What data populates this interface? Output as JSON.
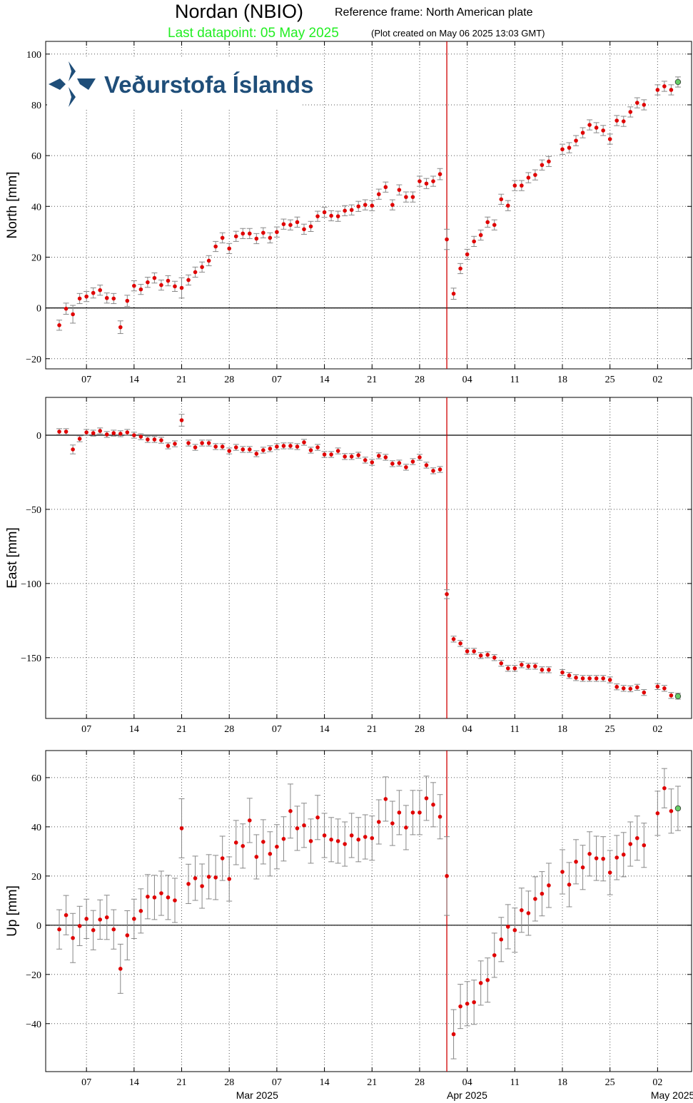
{
  "header": {
    "title": "Nordan (NBIO)",
    "reference": "Reference frame: North American plate",
    "last_datapoint": "Last datapoint: 05 May 2025",
    "created": "(Plot created on May 06 2025 13:03 GMT)"
  },
  "logo": {
    "text": "Veðurstofa Íslands"
  },
  "chart_data": {
    "type": "scatter",
    "color": "#e00000",
    "last_color": "#66cc66",
    "grid": true,
    "zero_line": true,
    "event_lines": [
      {
        "x": "2025-04-01",
        "color": "#d00000"
      }
    ],
    "xlim": [
      "2025-02-01",
      "2025-05-07"
    ],
    "xticks": [
      {
        "value": "2025-02-07",
        "label": "07"
      },
      {
        "value": "2025-02-14",
        "label": "14"
      },
      {
        "value": "2025-02-21",
        "label": "21"
      },
      {
        "value": "2025-02-28",
        "label": "28"
      },
      {
        "value": "2025-03-07",
        "label": "07"
      },
      {
        "value": "2025-03-14",
        "label": "14"
      },
      {
        "value": "2025-03-21",
        "label": "21"
      },
      {
        "value": "2025-03-28",
        "label": "28"
      },
      {
        "value": "2025-04-04",
        "label": "04"
      },
      {
        "value": "2025-04-11",
        "label": "11"
      },
      {
        "value": "2025-04-18",
        "label": "18"
      },
      {
        "value": "2025-04-25",
        "label": "25"
      },
      {
        "value": "2025-05-02",
        "label": "02"
      }
    ],
    "month_labels": [
      {
        "value": "2025-03-01",
        "label": "Mar 2025"
      },
      {
        "value": "2025-04-01",
        "label": "Apr 2025"
      },
      {
        "value": "2025-05-01",
        "label": "May 2025"
      }
    ],
    "x": [
      "2025-02-03",
      "2025-02-04",
      "2025-02-05",
      "2025-02-06",
      "2025-02-07",
      "2025-02-08",
      "2025-02-09",
      "2025-02-10",
      "2025-02-11",
      "2025-02-12",
      "2025-02-13",
      "2025-02-14",
      "2025-02-15",
      "2025-02-16",
      "2025-02-17",
      "2025-02-18",
      "2025-02-19",
      "2025-02-20",
      "2025-02-21",
      "2025-02-22",
      "2025-02-23",
      "2025-02-24",
      "2025-02-25",
      "2025-02-26",
      "2025-02-27",
      "2025-02-28",
      "2025-03-01",
      "2025-03-02",
      "2025-03-03",
      "2025-03-04",
      "2025-03-05",
      "2025-03-06",
      "2025-03-07",
      "2025-03-08",
      "2025-03-09",
      "2025-03-10",
      "2025-03-11",
      "2025-03-12",
      "2025-03-13",
      "2025-03-14",
      "2025-03-15",
      "2025-03-16",
      "2025-03-17",
      "2025-03-18",
      "2025-03-19",
      "2025-03-20",
      "2025-03-21",
      "2025-03-22",
      "2025-03-23",
      "2025-03-24",
      "2025-03-25",
      "2025-03-26",
      "2025-03-27",
      "2025-03-28",
      "2025-03-29",
      "2025-03-30",
      "2025-03-31",
      "2025-04-01",
      "2025-04-02",
      "2025-04-03",
      "2025-04-04",
      "2025-04-05",
      "2025-04-06",
      "2025-04-07",
      "2025-04-08",
      "2025-04-09",
      "2025-04-10",
      "2025-04-11",
      "2025-04-12",
      "2025-04-13",
      "2025-04-14",
      "2025-04-15",
      "2025-04-16",
      "2025-04-18",
      "2025-04-19",
      "2025-04-20",
      "2025-04-21",
      "2025-04-22",
      "2025-04-23",
      "2025-04-24",
      "2025-04-25",
      "2025-04-26",
      "2025-04-27",
      "2025-04-28",
      "2025-04-29",
      "2025-04-30",
      "2025-05-02",
      "2025-05-03",
      "2025-05-04",
      "2025-05-05"
    ],
    "panels": [
      {
        "ylabel": "North [mm]",
        "ylim": [
          -24,
          105
        ],
        "yticks": [
          {
            "value": -20,
            "label": "−20"
          },
          0,
          20,
          40,
          60,
          80,
          100
        ],
        "values": [
          -6.8,
          -0.3,
          -2.5,
          3.7,
          4.5,
          5.9,
          7.0,
          3.9,
          3.7,
          -7.6,
          2.8,
          8.7,
          7.3,
          10.1,
          11.8,
          9.0,
          10.7,
          8.5,
          7.9,
          11.0,
          14.1,
          16.1,
          18.6,
          24.2,
          27.6,
          23.4,
          28.2,
          29.3,
          29.3,
          27.3,
          29.6,
          27.6,
          29.9,
          33.0,
          32.7,
          33.8,
          31.0,
          32.1,
          36.1,
          37.7,
          36.3,
          36.1,
          38.3,
          38.6,
          40.0,
          40.6,
          40.3,
          44.8,
          47.6,
          40.6,
          46.5,
          43.7,
          43.7,
          49.9,
          49.0,
          49.9,
          52.7,
          27.0,
          5.6,
          15.5,
          21.1,
          26.2,
          28.7,
          33.8,
          32.7,
          42.8,
          40.3,
          48.2,
          48.2,
          51.3,
          52.4,
          56.3,
          57.7,
          62.5,
          63.1,
          65.9,
          69.0,
          72.1,
          71.0,
          69.9,
          66.5,
          73.8,
          73.5,
          77.2,
          80.8,
          80.0,
          85.9,
          87.3,
          85.9,
          89.0
        ],
        "errors": [
          2,
          2.2,
          3.5,
          2,
          2,
          2,
          2,
          2,
          2,
          2.5,
          2.2,
          2,
          2,
          2,
          2,
          2,
          2,
          2,
          4,
          2,
          2,
          2,
          2,
          2,
          2,
          2,
          2,
          2,
          2,
          2,
          2,
          2,
          2,
          2,
          2,
          2,
          2,
          2,
          2,
          2,
          2,
          2,
          2,
          2,
          2,
          2,
          2,
          2,
          2,
          2,
          2,
          2,
          2,
          2,
          2,
          2,
          2.2,
          4,
          2.2,
          2,
          2,
          2,
          2,
          2,
          2,
          2,
          2,
          2,
          2,
          2,
          2,
          2,
          2,
          2,
          2,
          2,
          2,
          2,
          2,
          2,
          2,
          2,
          2,
          2,
          2,
          2,
          2,
          2,
          2,
          2
        ]
      },
      {
        "ylabel": "East [mm]",
        "ylim": [
          -191,
          25.5
        ],
        "yticks": [
          {
            "value": -150,
            "label": "−150"
          },
          {
            "value": -100,
            "label": "−100"
          },
          {
            "value": -50,
            "label": "−50"
          },
          0
        ],
        "values": [
          2.4,
          2.4,
          -9.6,
          -2.4,
          1.9,
          1.4,
          2.9,
          0.5,
          1.4,
          1.0,
          1.9,
          0,
          -1,
          -2.9,
          -2.9,
          -3.4,
          -7.2,
          -5.8,
          10.1,
          -5.3,
          -8.2,
          -5.3,
          -5.3,
          -7.7,
          -7.7,
          -10.6,
          -8.2,
          -9.6,
          -9.6,
          -12.5,
          -10.1,
          -9.1,
          -7.7,
          -7.2,
          -7.2,
          -7.7,
          -4.8,
          -10.1,
          -8.2,
          -13,
          -13,
          -10.6,
          -14.4,
          -14.4,
          -13.5,
          -16.8,
          -18.3,
          -13.9,
          -14.9,
          -19.2,
          -18.8,
          -21.6,
          -17.8,
          -14.9,
          -20.2,
          -24,
          -23.1,
          -107.2,
          -137.5,
          -140.4,
          -145.7,
          -145.7,
          -148.6,
          -148.1,
          -150,
          -153.8,
          -157.2,
          -157.2,
          -154.8,
          -155.8,
          -155.8,
          -158.2,
          -158.2,
          -160,
          -162,
          -163.5,
          -164,
          -164,
          -164,
          -164,
          -165,
          -169.7,
          -170.7,
          -171,
          -170,
          -173.5,
          -169.5,
          -170.7,
          -175.5,
          -176
        ],
        "errors": [
          2,
          2,
          3,
          2,
          2,
          2,
          2,
          2,
          2,
          2,
          2,
          2,
          2,
          2,
          2,
          2,
          2,
          2,
          4,
          2,
          2,
          2,
          2,
          2,
          2,
          2,
          2,
          2,
          2,
          2,
          2,
          2,
          2,
          2,
          2,
          2,
          2,
          2,
          2,
          2,
          2,
          2,
          2,
          2,
          2,
          2,
          2,
          2,
          2,
          2,
          2,
          2,
          2,
          2,
          2,
          2,
          2,
          3,
          2,
          2,
          2,
          2,
          2,
          2,
          2,
          2,
          2,
          2,
          2,
          2,
          2,
          2,
          2,
          2,
          2,
          2,
          2,
          2,
          2,
          2,
          2,
          2,
          2,
          2,
          2,
          2,
          2,
          2,
          2,
          2
        ]
      },
      {
        "ylabel": "Up [mm]",
        "ylim": [
          -59.5,
          71
        ],
        "yticks": [
          {
            "value": -40,
            "label": "−40"
          },
          {
            "value": -20,
            "label": "−20"
          },
          0,
          20,
          40,
          60
        ],
        "values": [
          -1.7,
          4.1,
          -5.2,
          -0.3,
          2.6,
          -2.0,
          2.3,
          3.2,
          -1.7,
          -17.7,
          -4.1,
          2.6,
          5.8,
          11.6,
          11.3,
          13.0,
          11.3,
          10.1,
          39.4,
          16.8,
          19.1,
          15.9,
          19.7,
          19.4,
          27.2,
          18.8,
          33.6,
          32.2,
          42.6,
          27.8,
          33.9,
          29.0,
          31.9,
          35.1,
          46.4,
          39.4,
          40.6,
          34.2,
          43.8,
          36.5,
          34.8,
          34.2,
          33.0,
          36.5,
          34.8,
          35.9,
          35.4,
          42.0,
          51.3,
          41.4,
          45.8,
          39.7,
          45.8,
          45.8,
          51.6,
          49.0,
          44.1,
          20.0,
          -44.3,
          -33,
          -31.9,
          -31.3,
          -23.5,
          -22.3,
          -12.2,
          -5.8,
          -0.6,
          -2.0,
          6.1,
          4.9,
          10.7,
          12.8,
          16.2,
          21.7,
          16.5,
          25.8,
          23.5,
          29.0,
          27.2,
          27.0,
          21.4,
          27.5,
          28.7,
          33.0,
          35.4,
          32.5,
          45.5,
          55.7,
          46.4,
          47.5
        ],
        "errors": [
          8,
          8,
          10,
          8,
          8,
          8,
          8,
          9,
          8,
          10,
          10,
          8,
          9,
          9,
          9,
          9,
          9,
          9,
          12,
          8,
          9,
          9,
          9,
          9,
          9,
          9,
          9,
          9,
          9,
          9,
          9,
          9,
          9,
          9,
          11,
          9,
          9,
          9,
          9,
          9,
          9,
          9,
          9,
          9,
          9,
          9,
          9,
          9,
          9,
          9,
          9,
          9,
          9,
          9,
          9,
          9,
          9,
          16,
          10,
          9,
          9,
          9,
          9,
          9,
          9,
          9,
          9,
          9,
          9,
          9,
          9,
          9,
          9,
          9,
          9,
          9,
          9,
          9,
          9,
          9,
          9,
          9,
          9,
          9,
          9,
          9,
          9,
          8,
          9,
          9
        ]
      }
    ]
  }
}
